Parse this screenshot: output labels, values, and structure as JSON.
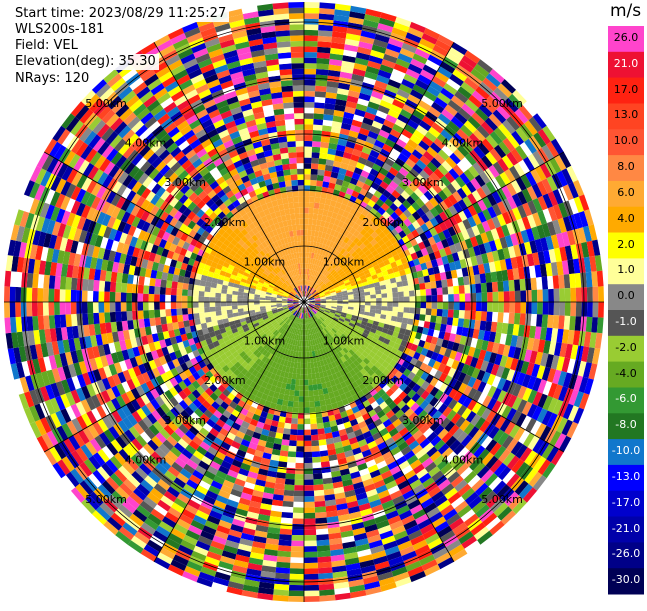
{
  "info": {
    "start_time": "Start time: 2023/08/29 11:25:27",
    "instrument": "WLS200s-181",
    "field": "Field: VEL",
    "elevation": "Elevation(deg): 35.30",
    "nrays": "NRays: 120"
  },
  "chart_data": {
    "type": "heatmap",
    "subtype": "polar-ppi",
    "field": "VEL",
    "elevation_deg": 35.3,
    "nrays": 120,
    "range_ring_labels": [
      "1.00km",
      "2.00km",
      "3.00km",
      "4.00km",
      "5.00km"
    ],
    "colorbar": {
      "unit": "m/s",
      "ticks": [
        "26.0",
        "21.0",
        "17.0",
        "13.0",
        "10.0",
        "8.0",
        "6.0",
        "4.0",
        "2.0",
        "1.0",
        "0.0",
        "-1.0",
        "-2.0",
        "-4.0",
        "-6.0",
        "-8.0",
        "-10.0",
        "-13.0",
        "-17.0",
        "-21.0",
        "-26.0",
        "-30.0"
      ],
      "colors": [
        "#ff44cc",
        "#ee1133",
        "#ff2211",
        "#ff4422",
        "#ff5533",
        "#ff8844",
        "#ffaa33",
        "#ffaa00",
        "#ffff00",
        "#ffff99",
        "#888888",
        "#555555",
        "#99cc33",
        "#66aa22",
        "#339933",
        "#227722",
        "#1177cc",
        "#0000ff",
        "#0000cc",
        "#0000aa",
        "#000088",
        "#000055"
      ]
    },
    "pattern": {
      "near_positive_sector": "north (yellow/orange, 2 to 8 m/s)",
      "near_negative_sector": "south (green, -2 to -8 m/s)",
      "clean_signal_max_range_km": 1.9,
      "noise_beyond": "random colors across full scale"
    }
  }
}
